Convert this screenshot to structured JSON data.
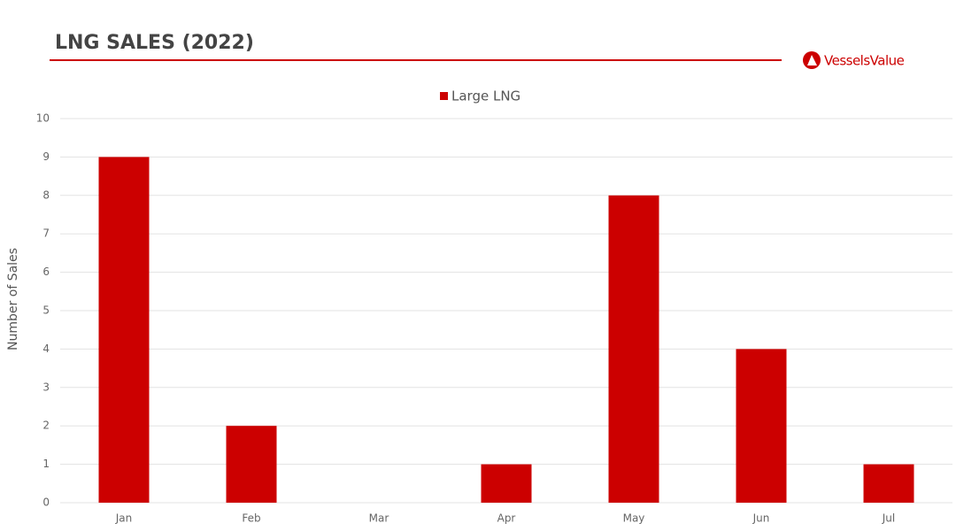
{
  "brand": "VesselsValue",
  "chart_data": {
    "type": "bar",
    "title": "LNG SALES (2022)",
    "y_label": "Number of Sales",
    "categories": [
      "Jan",
      "Feb",
      "Mar",
      "Apr",
      "May",
      "Jun",
      "Jul"
    ],
    "series": [
      {
        "name": "Large LNG",
        "color": "#cc0000",
        "values": [
          9,
          2,
          0,
          1,
          8,
          4,
          1
        ]
      }
    ],
    "ylim": [
      0,
      10
    ],
    "yticks": [
      0,
      1,
      2,
      3,
      4,
      5,
      6,
      7,
      8,
      9,
      10
    ],
    "grid": true,
    "legend": "top"
  }
}
